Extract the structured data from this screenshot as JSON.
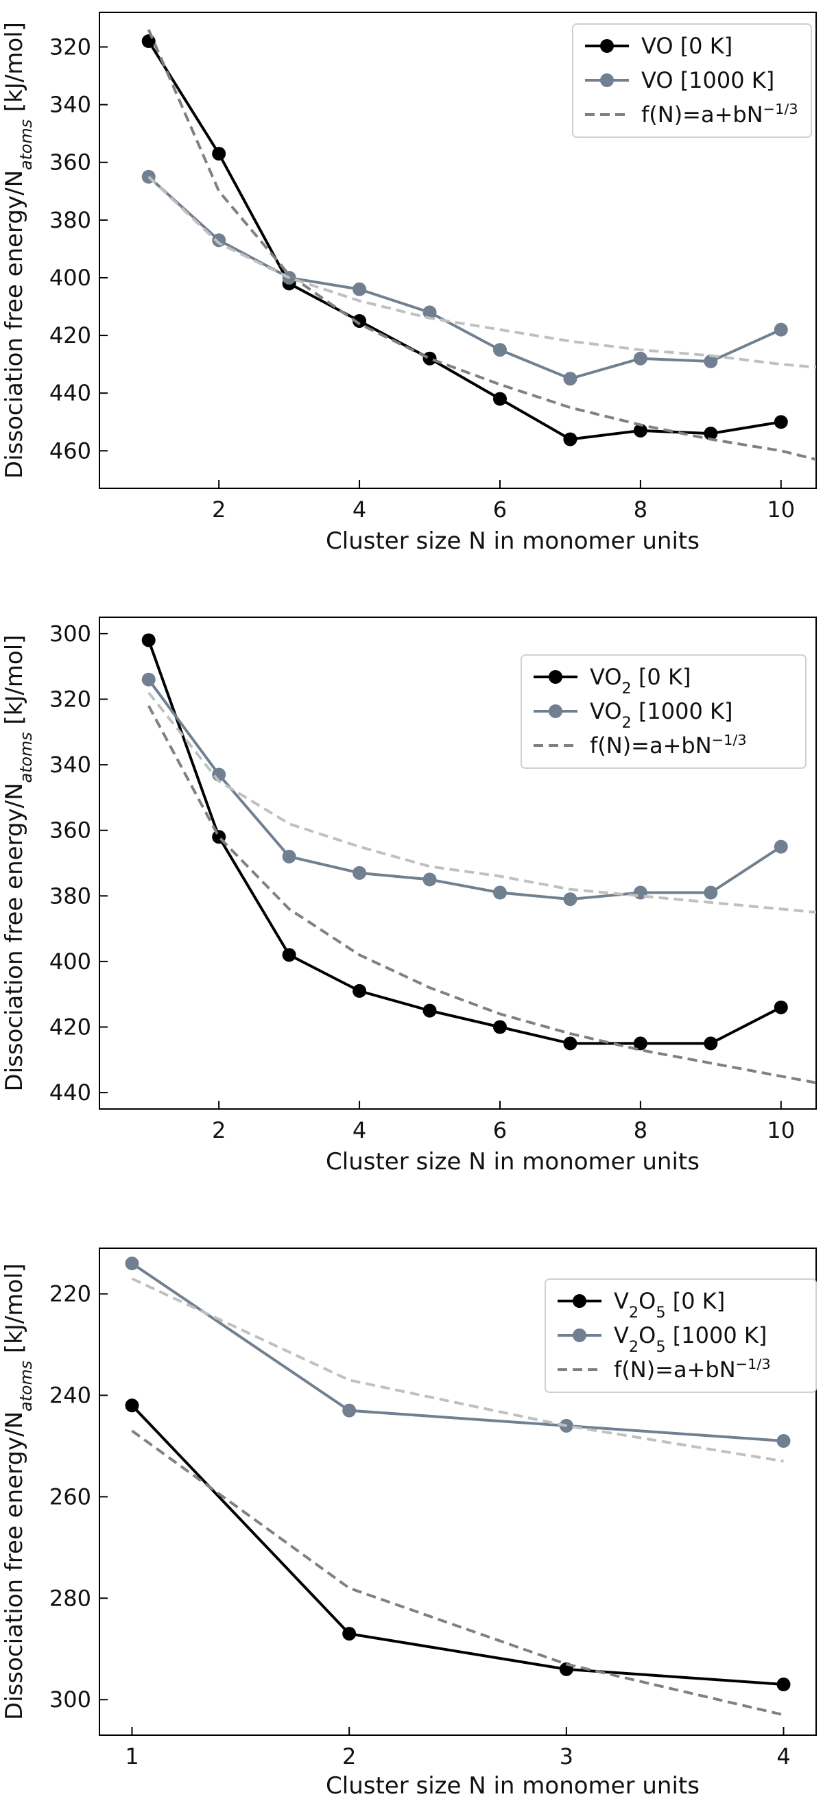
{
  "chart_data": [
    {
      "type": "line",
      "ylabel": "Dissociation free energy/N_atoms [kJ/mol]",
      "ylabel_parts": {
        "pre": "Dissociation free energy/N",
        "sub": "atoms",
        "post": " [kJ/mol]"
      },
      "xlabel": "Cluster size N in monomer units",
      "x": [
        1,
        2,
        3,
        4,
        5,
        6,
        7,
        8,
        9,
        10
      ],
      "xlim": [
        0.3,
        10.5
      ],
      "ylim": [
        473,
        308
      ],
      "y_inverted": true,
      "xticks": [
        2,
        4,
        6,
        8,
        10
      ],
      "yticks": [
        320,
        340,
        360,
        380,
        400,
        420,
        440,
        460
      ],
      "legend_position": "top-right",
      "series": [
        {
          "name": "VO [0 K]",
          "name_parts": [
            "VO",
            "",
            " [0 K]"
          ],
          "kind": "markers-line",
          "color": "#000000",
          "values": [
            318,
            357,
            402,
            415,
            428,
            442,
            456,
            453,
            454,
            450
          ]
        },
        {
          "name": "VO [1000 K]",
          "name_parts": [
            "VO",
            "",
            " [1000 K]"
          ],
          "kind": "markers-line",
          "color": "#708090",
          "values": [
            365,
            387,
            400,
            404,
            412,
            425,
            435,
            428,
            429,
            418
          ]
        },
        {
          "name": "f(N)=a+bN^-1/3",
          "name_parts": [
            "f(N)=a+bN",
            "−1/3",
            ""
          ],
          "kind": "dashed",
          "color": "#808080",
          "x": [
            1,
            2,
            3,
            4,
            5,
            6,
            7,
            8,
            9,
            10,
            10.5
          ],
          "values": [
            314,
            370,
            399,
            416,
            428,
            437,
            445,
            451,
            456,
            460,
            463
          ]
        },
        {
          "name": "",
          "kind": "dashed",
          "color": "#c0c0c0",
          "in_legend": false,
          "x": [
            1,
            2,
            3,
            4,
            5,
            6,
            7,
            8,
            9,
            10,
            10.5
          ],
          "values": [
            365,
            388,
            400,
            408,
            414,
            418,
            422,
            425,
            427,
            430,
            431
          ]
        }
      ]
    },
    {
      "type": "line",
      "ylabel": "Dissociation free energy/N_atoms [kJ/mol]",
      "ylabel_parts": {
        "pre": "Dissociation free energy/N",
        "sub": "atoms",
        "post": " [kJ/mol]"
      },
      "xlabel": "Cluster size N in monomer units",
      "x": [
        1,
        2,
        3,
        4,
        5,
        6,
        7,
        8,
        9,
        10
      ],
      "xlim": [
        0.3,
        10.5
      ],
      "ylim": [
        445,
        295
      ],
      "y_inverted": true,
      "xticks": [
        2,
        4,
        6,
        8,
        10
      ],
      "yticks": [
        300,
        320,
        340,
        360,
        380,
        400,
        420,
        440
      ],
      "legend_position": "top-right",
      "series": [
        {
          "name": "VO2 [0 K]",
          "name_parts": [
            "VO",
            "2",
            " [0 K]"
          ],
          "kind": "markers-line",
          "color": "#000000",
          "values": [
            302,
            362,
            398,
            409,
            415,
            420,
            425,
            425,
            425,
            414
          ]
        },
        {
          "name": "VO2 [1000 K]",
          "name_parts": [
            "VO",
            "2",
            " [1000 K]"
          ],
          "kind": "markers-line",
          "color": "#708090",
          "values": [
            314,
            343,
            368,
            373,
            375,
            379,
            381,
            379,
            379,
            365
          ]
        },
        {
          "name": "f(N)=a+bN^-1/3",
          "name_parts": [
            "f(N)=a+bN",
            "−1/3",
            ""
          ],
          "kind": "dashed",
          "color": "#808080",
          "x": [
            1,
            2,
            3,
            4,
            5,
            6,
            7,
            8,
            9,
            10,
            10.5
          ],
          "values": [
            322,
            362,
            384,
            398,
            408,
            416,
            422,
            427,
            431,
            435,
            437
          ]
        },
        {
          "name": "",
          "kind": "dashed",
          "color": "#c0c0c0",
          "in_legend": false,
          "x": [
            1,
            2,
            3,
            4,
            5,
            6,
            7,
            8,
            9,
            10,
            10.5
          ],
          "values": [
            318,
            345,
            358,
            365,
            371,
            374,
            378,
            380,
            382,
            384,
            385
          ]
        }
      ]
    },
    {
      "type": "line",
      "ylabel": "Dissociation free energy/N_atoms [kJ/mol]",
      "ylabel_parts": {
        "pre": "Dissociation free energy/N",
        "sub": "atoms",
        "post": " [kJ/mol]"
      },
      "xlabel": "Cluster size N in monomer units",
      "x": [
        1,
        2,
        3,
        4
      ],
      "xlim": [
        0.85,
        4.15
      ],
      "ylim": [
        307,
        211
      ],
      "y_inverted": true,
      "xticks": [
        1,
        2,
        3,
        4
      ],
      "yticks": [
        220,
        240,
        260,
        280,
        300
      ],
      "legend_position": "top-right",
      "series": [
        {
          "name": "V2O5 [0 K]",
          "name_parts": [
            "V",
            "2",
            "O",
            "5",
            " [0 K]"
          ],
          "kind": "markers-line",
          "color": "#000000",
          "values": [
            242,
            287,
            294,
            297
          ]
        },
        {
          "name": "V2O5 [1000 K]",
          "name_parts": [
            "V",
            "2",
            "O",
            "5",
            " [1000 K]"
          ],
          "kind": "markers-line",
          "color": "#708090",
          "values": [
            214,
            243,
            246,
            249
          ]
        },
        {
          "name": "f(N)=a+bN^-1/3",
          "name_parts": [
            "f(N)=a+bN",
            "−1/3",
            ""
          ],
          "kind": "dashed",
          "color": "#808080",
          "x": [
            1,
            2,
            3,
            4
          ],
          "values": [
            247,
            278,
            293,
            303
          ]
        },
        {
          "name": "",
          "kind": "dashed",
          "color": "#c0c0c0",
          "in_legend": false,
          "x": [
            1,
            2,
            3,
            4
          ],
          "values": [
            217,
            237,
            246,
            253
          ]
        }
      ]
    }
  ]
}
